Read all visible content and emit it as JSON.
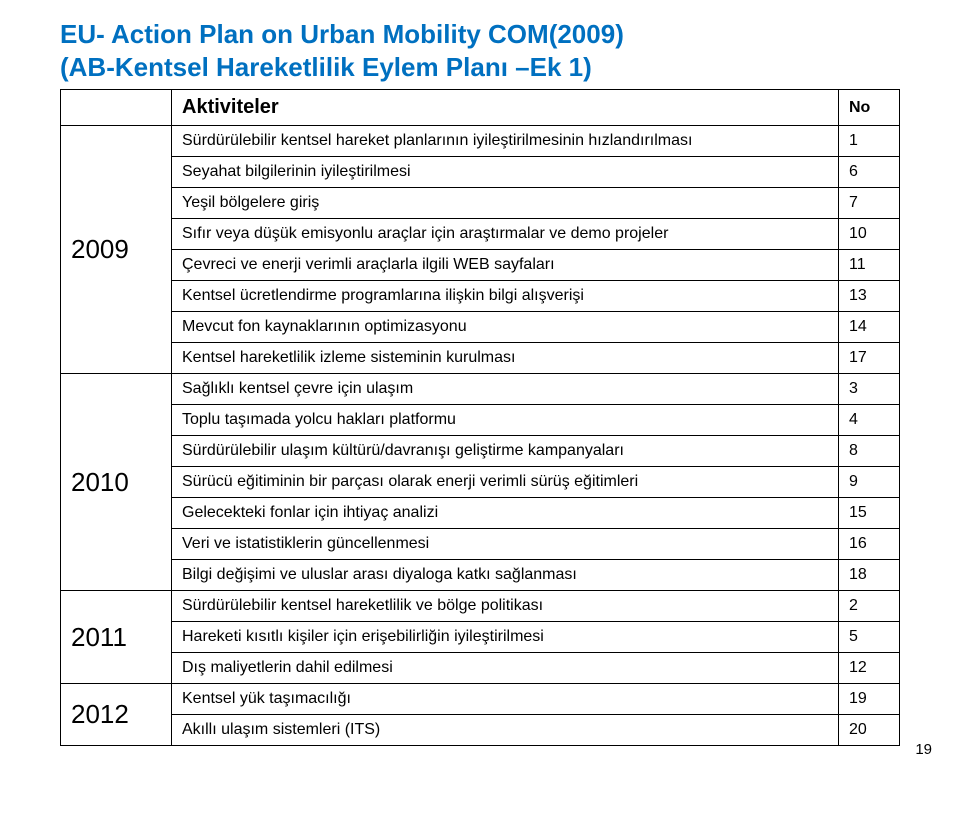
{
  "title": {
    "line1": "EU- Action Plan on Urban Mobility COM(2009)",
    "line2": "(AB-Kentsel Hareketlilik Eylem Planı –Ek 1)",
    "color": "#0070c0",
    "fontsize": 26
  },
  "header": {
    "activities": "Aktiviteler",
    "no": "No"
  },
  "years": {
    "y2009": "2009",
    "y2010": "2010",
    "y2011": "2011",
    "y2012": "2012"
  },
  "rows": {
    "r1": {
      "text": "Sürdürülebilir kentsel hareket planlarının iyileştirilmesinin hızlandırılması",
      "no": "1"
    },
    "r2": {
      "text": "Seyahat bilgilerinin iyileştirilmesi",
      "no": "6"
    },
    "r3": {
      "text": "Yeşil bölgelere giriş",
      "no": "7"
    },
    "r4": {
      "text": "Sıfır veya düşük emisyonlu araçlar için araştırmalar ve demo projeler",
      "no": "10"
    },
    "r5": {
      "text": "Çevreci ve enerji verimli araçlarla ilgili WEB sayfaları",
      "no": "11"
    },
    "r6": {
      "text": "Kentsel ücretlendirme programlarına ilişkin bilgi alışverişi",
      "no": "13"
    },
    "r7": {
      "text": "Mevcut fon kaynaklarının optimizasyonu",
      "no": "14"
    },
    "r8": {
      "text": "Kentsel hareketlilik izleme sisteminin kurulması",
      "no": "17"
    },
    "r9": {
      "text": "Sağlıklı kentsel çevre için ulaşım",
      "no": "3"
    },
    "r10": {
      "text": "Toplu taşımada yolcu hakları platformu",
      "no": "4"
    },
    "r11": {
      "text": "Sürdürülebilir ulaşım kültürü/davranışı geliştirme kampanyaları",
      "no": "8"
    },
    "r12": {
      "text": "Sürücü eğitiminin bir parçası olarak enerji verimli sürüş eğitimleri",
      "no": "9"
    },
    "r13": {
      "text": "Gelecekteki fonlar için ihtiyaç analizi",
      "no": "15"
    },
    "r14": {
      "text": "Veri ve istatistiklerin güncellenmesi",
      "no": "16"
    },
    "r15": {
      "text": "Bilgi değişimi ve uluslar arası diyaloga katkı sağlanması",
      "no": "18"
    },
    "r16": {
      "text": "Sürdürülebilir kentsel hareketlilik ve bölge politikası",
      "no": "2"
    },
    "r17": {
      "text": "Hareketi kısıtlı kişiler için erişebilirliğin  iyileştirilmesi",
      "no": "5"
    },
    "r18": {
      "text": "Dış maliyetlerin dahil edilmesi",
      "no": "12"
    },
    "r19": {
      "text": "Kentsel yük taşımacılığı",
      "no": "19"
    },
    "r20": {
      "text": "Akıllı ulaşım sistemleri (ITS)",
      "no": "20"
    }
  },
  "pageNumber": "19",
  "style": {
    "title_color": "#0070c0",
    "border_color": "#000000",
    "background": "#ffffff",
    "body_fontsize": 16,
    "year_fontsize": 26,
    "header_fontsize": 20
  }
}
